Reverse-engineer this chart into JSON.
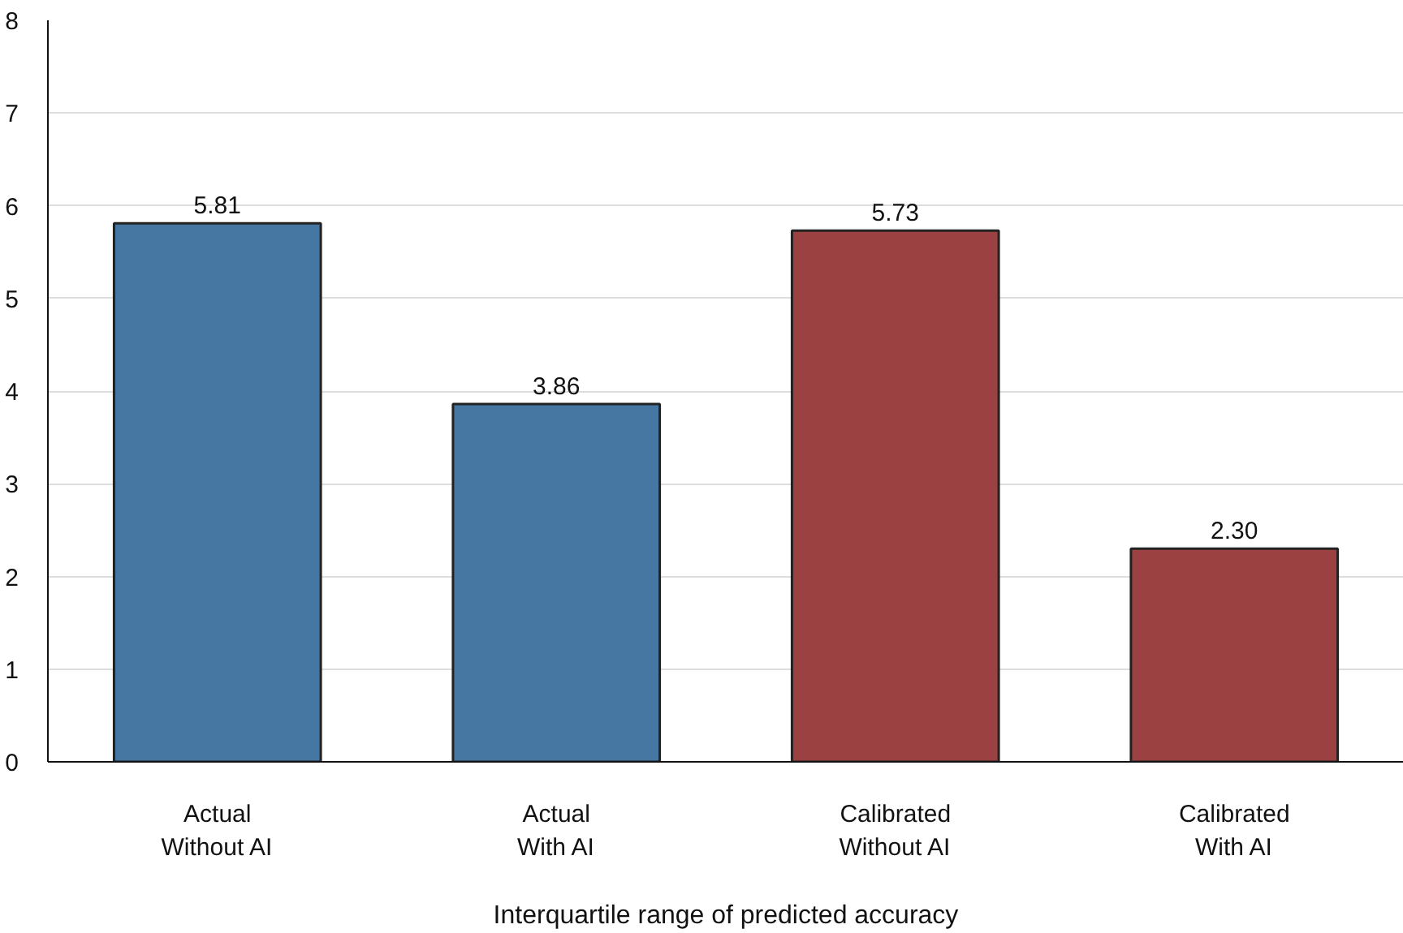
{
  "chart_data": {
    "type": "bar",
    "xlabel": "Interquartile range of predicted accuracy",
    "categories": [
      "Actual\nWithout AI",
      "Actual\nWith AI",
      "Calibrated\nWithout AI",
      "Calibrated\nWith AI"
    ],
    "values": [
      5.81,
      3.86,
      5.73,
      2.3
    ],
    "value_labels": [
      "5.81",
      "3.86",
      "5.73",
      "2.30"
    ],
    "colors": [
      "#4677a3",
      "#4677a3",
      "#9b4141",
      "#9b4141"
    ],
    "ylim": [
      0,
      8
    ],
    "yticks": [
      0,
      1,
      2,
      3,
      4,
      5,
      6,
      7,
      8
    ],
    "grid": "y"
  }
}
